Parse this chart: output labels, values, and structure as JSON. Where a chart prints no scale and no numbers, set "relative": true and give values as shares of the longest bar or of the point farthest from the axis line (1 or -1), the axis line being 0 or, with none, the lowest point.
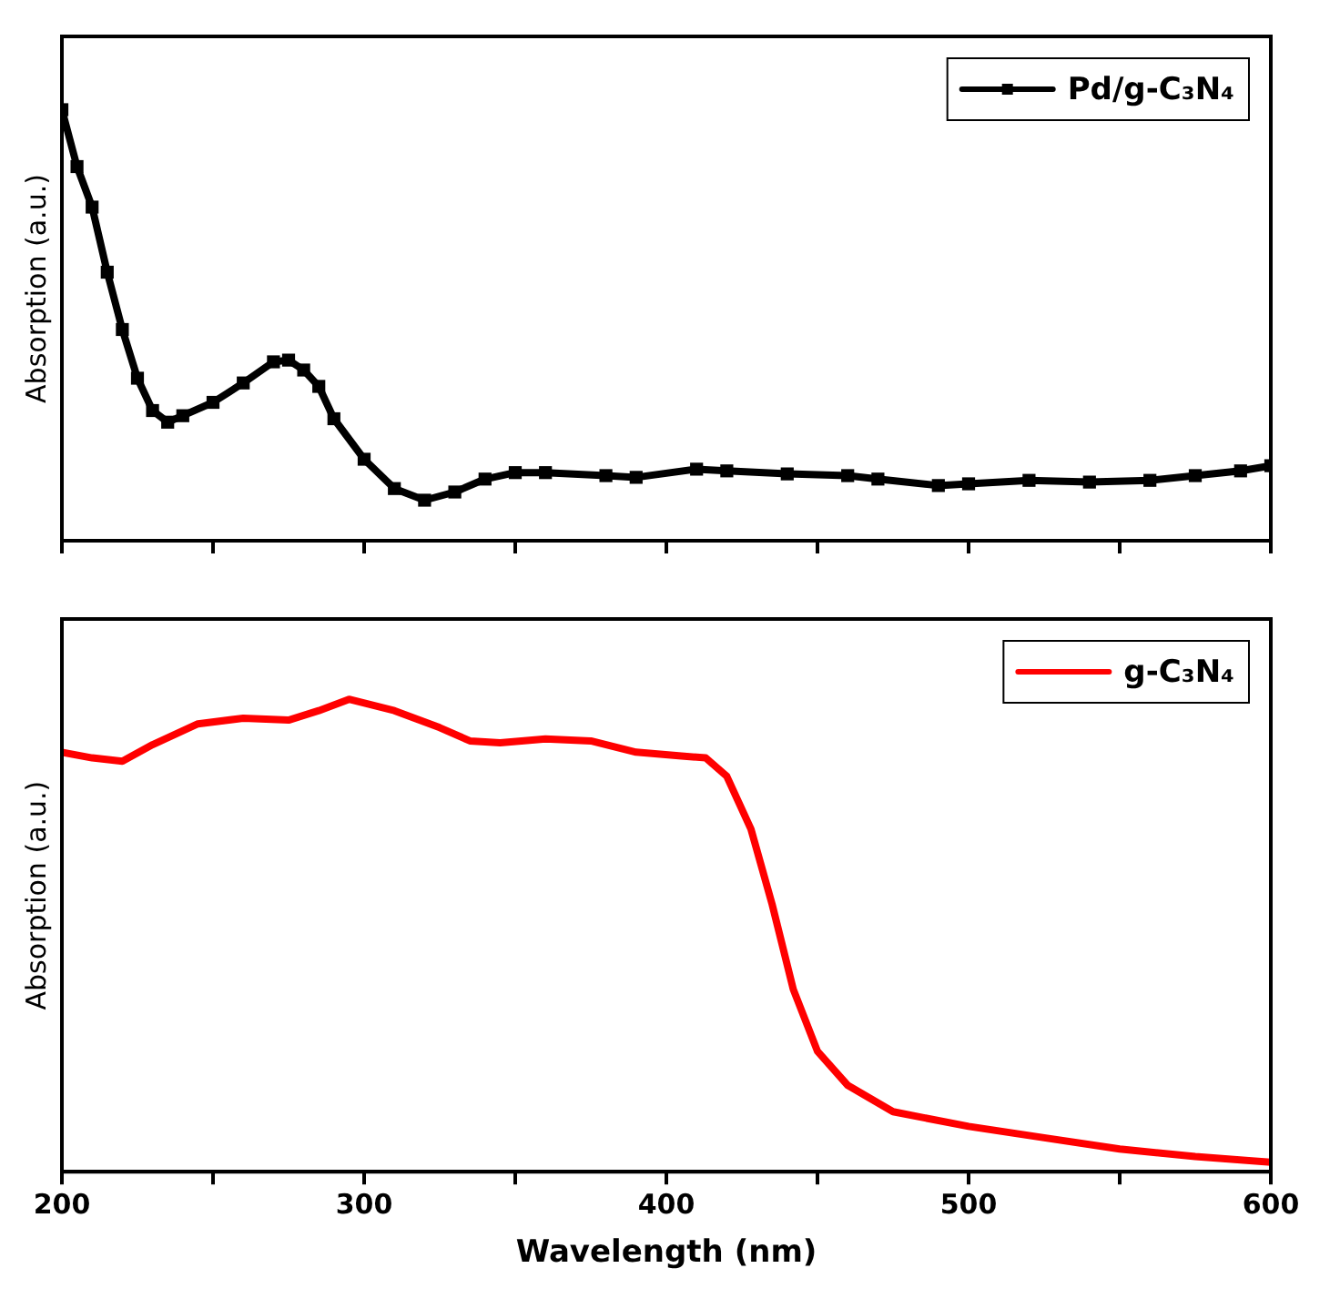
{
  "chart_data": [
    {
      "type": "line",
      "relative": true,
      "ylabel": "Absorption (a.u.)",
      "xlim": [
        200,
        600
      ],
      "xticks": [
        200,
        {
          "value": 250,
          "label": null
        },
        300,
        {
          "value": 350,
          "label": null
        },
        400,
        {
          "value": 450,
          "label": null
        },
        500,
        {
          "value": 550,
          "label": null
        },
        600
      ],
      "tick_labels": false,
      "grid": false,
      "legend": "top right",
      "marker": "square",
      "series": [
        {
          "name": "Pd/g-C₃N₄",
          "color": "#000000",
          "x": [
            200,
            205,
            210,
            215,
            220,
            225,
            230,
            235,
            240,
            250,
            260,
            270,
            275,
            280,
            285,
            290,
            300,
            310,
            320,
            330,
            340,
            350,
            360,
            380,
            390,
            410,
            420,
            440,
            460,
            470,
            490,
            500,
            520,
            540,
            560,
            575,
            590,
            600
          ],
          "values": [
            1.0,
            0.868,
            0.774,
            0.623,
            0.49,
            0.377,
            0.302,
            0.275,
            0.29,
            0.321,
            0.366,
            0.415,
            0.419,
            0.396,
            0.358,
            0.283,
            0.189,
            0.121,
            0.094,
            0.113,
            0.143,
            0.158,
            0.158,
            0.151,
            0.147,
            0.166,
            0.162,
            0.155,
            0.151,
            0.143,
            0.128,
            0.132,
            0.14,
            0.136,
            0.14,
            0.151,
            0.162,
            0.174
          ]
        }
      ]
    },
    {
      "type": "line",
      "relative": true,
      "ylabel": "Absorption (a.u.)",
      "xlabel": "Wavelength (nm)",
      "xlim": [
        200,
        600
      ],
      "xticks": [
        200,
        {
          "value": 250,
          "label": null
        },
        300,
        {
          "value": 350,
          "label": null
        },
        400,
        {
          "value": 450,
          "label": null
        },
        500,
        {
          "value": 550,
          "label": null
        },
        600
      ],
      "tick_labels": "x",
      "grid": false,
      "legend": "top right",
      "series": [
        {
          "name": "g-C₃N₄",
          "color": "#ff0000",
          "x": [
            200,
            210,
            220,
            230,
            245,
            260,
            275,
            285,
            295,
            310,
            325,
            335,
            345,
            360,
            375,
            390,
            405,
            413,
            420,
            428,
            435,
            442,
            450,
            460,
            475,
            500,
            525,
            550,
            575,
            600
          ],
          "values": [
            0.888,
            0.876,
            0.869,
            0.904,
            0.948,
            0.96,
            0.956,
            0.976,
            1.0,
            0.976,
            0.94,
            0.912,
            0.908,
            0.916,
            0.912,
            0.888,
            0.88,
            0.876,
            0.837,
            0.725,
            0.566,
            0.386,
            0.255,
            0.183,
            0.127,
            0.096,
            0.072,
            0.048,
            0.032,
            0.02
          ]
        }
      ]
    }
  ]
}
